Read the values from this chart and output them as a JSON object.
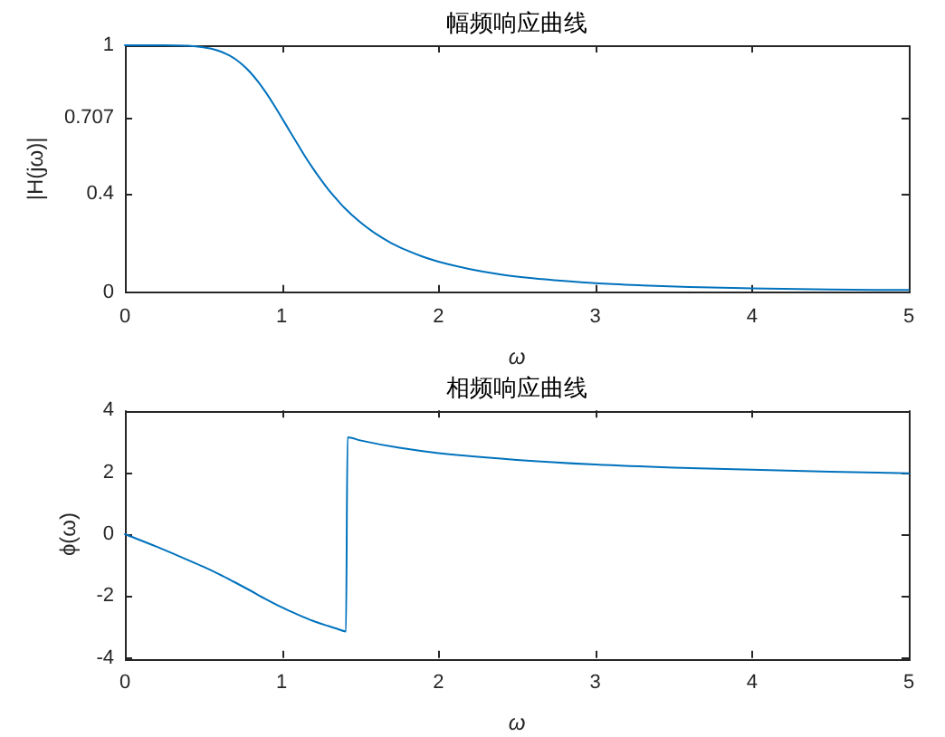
{
  "chart_data": [
    {
      "type": "line",
      "title": "幅频响应曲线",
      "xlabel": "ω",
      "ylabel": "|H(jω)|",
      "color": "#0072bd",
      "x": [
        0,
        0.25,
        0.4,
        0.5,
        0.55,
        0.6,
        0.65,
        0.7,
        0.75,
        0.8,
        0.85,
        0.9,
        0.95,
        1.0,
        1.05,
        1.1,
        1.15,
        1.2,
        1.25,
        1.3,
        1.35,
        1.4,
        1.5,
        1.6,
        1.7,
        1.8,
        1.9,
        2.0,
        2.2,
        2.4,
        2.6,
        2.8,
        3.0,
        3.3,
        3.6,
        4.0,
        4.5,
        5.0
      ],
      "values": [
        1,
        1,
        0.998,
        0.992,
        0.986,
        0.977,
        0.964,
        0.946,
        0.921,
        0.89,
        0.852,
        0.808,
        0.759,
        0.707,
        0.654,
        0.601,
        0.549,
        0.501,
        0.456,
        0.414,
        0.377,
        0.342,
        0.284,
        0.237,
        0.199,
        0.169,
        0.144,
        0.124,
        0.094,
        0.072,
        0.057,
        0.046,
        0.037,
        0.028,
        0.021,
        0.016,
        0.011,
        0.009
      ],
      "xlim": [
        0,
        5
      ],
      "xticks": [
        0,
        1,
        2,
        3,
        4,
        5
      ],
      "ylim": [
        0,
        1
      ],
      "yticks": [
        0,
        0.4,
        0.707,
        1
      ]
    },
    {
      "type": "line",
      "title": "相频响应曲线",
      "xlabel": "ω",
      "ylabel": "ϕ(ω)",
      "color": "#0072bd",
      "x": [
        0,
        0.2,
        0.4,
        0.5,
        0.6,
        0.7,
        0.8,
        0.9,
        1.0,
        1.1,
        1.2,
        1.3,
        1.35,
        1.41,
        1.42,
        1.5,
        1.75,
        2.0,
        2.5,
        3.0,
        3.5,
        4.0,
        4.5,
        5.0
      ],
      "values": [
        0,
        -0.4,
        -0.83,
        -1.05,
        -1.29,
        -1.55,
        -1.82,
        -2.1,
        -2.36,
        -2.59,
        -2.8,
        -2.97,
        -3.05,
        -3.14,
        3.13,
        3.03,
        2.79,
        2.62,
        2.4,
        2.25,
        2.15,
        2.08,
        2.02,
        1.97
      ],
      "xlim": [
        0,
        5
      ],
      "xticks": [
        0,
        1,
        2,
        3,
        4,
        5
      ],
      "ylim": [
        -4,
        4
      ],
      "yticks": [
        -4,
        -2,
        0,
        2,
        4
      ]
    }
  ]
}
